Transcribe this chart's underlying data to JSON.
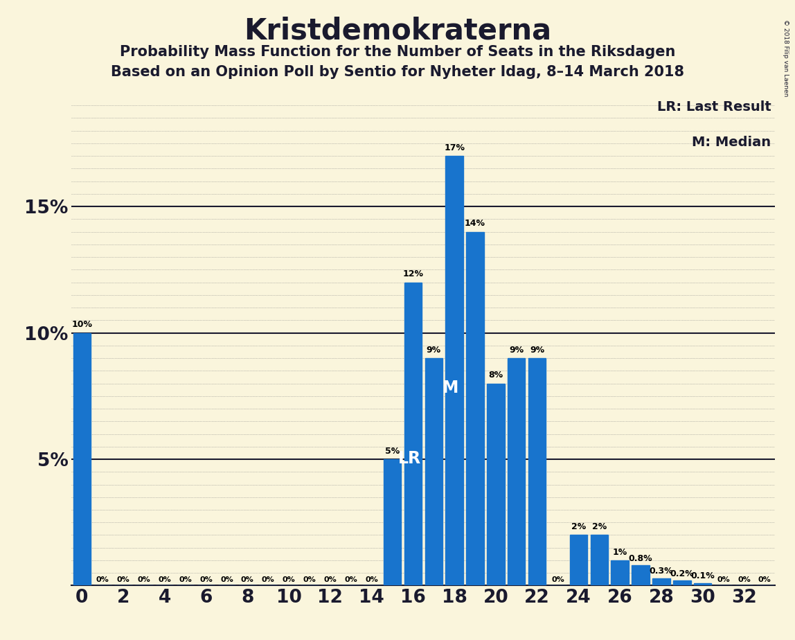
{
  "title": "Kristdemokraterna",
  "subtitle1": "Probability Mass Function for the Number of Seats in the Riksdagen",
  "subtitle2": "Based on an Opinion Poll by Sentio for Nyheter Idag, 8–14 March 2018",
  "copyright": "© 2018 Filip van Laenen",
  "legend_lr": "LR: Last Result",
  "legend_m": "M: Median",
  "bar_values": {
    "0": 10.0,
    "1": 0.0,
    "2": 0.0,
    "3": 0.0,
    "4": 0.0,
    "5": 0.0,
    "6": 0.0,
    "7": 0.0,
    "8": 0.0,
    "9": 0.0,
    "10": 0.0,
    "11": 0.0,
    "12": 0.0,
    "13": 0.0,
    "14": 0.0,
    "15": 5.0,
    "16": 12.0,
    "17": 9.0,
    "18": 17.0,
    "19": 14.0,
    "20": 8.0,
    "21": 9.0,
    "22": 9.0,
    "23": 0.0,
    "24": 2.0,
    "25": 2.0,
    "26": 1.0,
    "27": 0.8,
    "28": 0.3,
    "29": 0.2,
    "30": 0.1,
    "31": 0.0,
    "32": 0.0,
    "33": 0.0
  },
  "bar_color": "#1874CD",
  "background_color": "#FAF5DC",
  "lr_seat": 16,
  "median_seat": 18,
  "title_fontsize": 30,
  "subtitle_fontsize": 15,
  "axis_fontsize": 19,
  "label_fontsize": 9
}
